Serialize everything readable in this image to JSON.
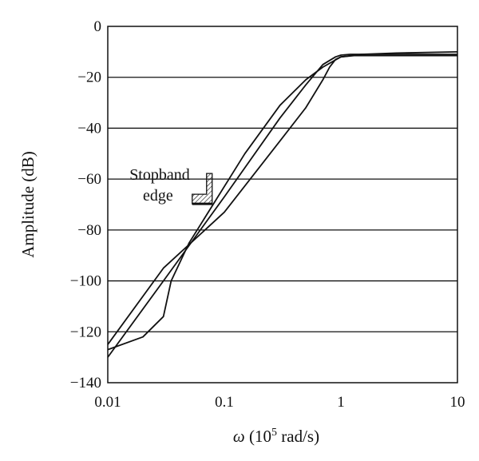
{
  "chart_data": {
    "type": "line",
    "title": "",
    "xlabel": {
      "symbol": "ω",
      "prefix": " (10",
      "exponent": "5",
      "suffix": " rad/s)"
    },
    "ylabel": "Amplitude (dB)",
    "xscale": "log",
    "xlim": [
      0.01,
      10
    ],
    "ylim": [
      -140,
      0
    ],
    "xticks": [
      {
        "value": 0.01,
        "label": "0.01"
      },
      {
        "value": 0.1,
        "label": "0.1"
      },
      {
        "value": 1,
        "label": "1"
      },
      {
        "value": 10,
        "label": "10"
      }
    ],
    "yticks": [
      {
        "value": 0,
        "label": "0"
      },
      {
        "value": -20,
        "label": "−20"
      },
      {
        "value": -40,
        "label": "−40"
      },
      {
        "value": -60,
        "label": "−60"
      },
      {
        "value": -80,
        "label": "−80"
      },
      {
        "value": -100,
        "label": "−100"
      },
      {
        "value": -120,
        "label": "−120"
      },
      {
        "value": -140,
        "label": "−140"
      }
    ],
    "grid": "horizontal",
    "series": [
      {
        "x": [
          0.01,
          0.02,
          0.03,
          0.035,
          0.05,
          0.08,
          0.15,
          0.3,
          0.5,
          0.7,
          1.0,
          1.5,
          3,
          10
        ],
        "y": [
          -127,
          -122,
          -114,
          -100,
          -85,
          -70,
          -50,
          -31,
          -21,
          -16,
          -12,
          -11,
          -11,
          -11
        ]
      },
      {
        "x": [
          0.01,
          0.03,
          0.1,
          0.3,
          0.5,
          0.7,
          0.9,
          1.0,
          1.2,
          1.5,
          3,
          10
        ],
        "y": [
          -130,
          -100,
          -67,
          -36,
          -23,
          -15,
          -12,
          -11.3,
          -11,
          -11,
          -10.5,
          -10
        ]
      },
      {
        "x": [
          0.01,
          0.03,
          0.1,
          0.3,
          0.5,
          0.7,
          0.8,
          0.9,
          1.0,
          1.3,
          3,
          10
        ],
        "y": [
          -125,
          -95,
          -73,
          -45,
          -32,
          -21,
          -16,
          -13,
          -12,
          -11.5,
          -11.5,
          -11.5
        ]
      }
    ],
    "annotations": [
      {
        "lines": [
          "Stopband",
          "edge"
        ],
        "x": 0.075,
        "y": -60
      }
    ]
  }
}
